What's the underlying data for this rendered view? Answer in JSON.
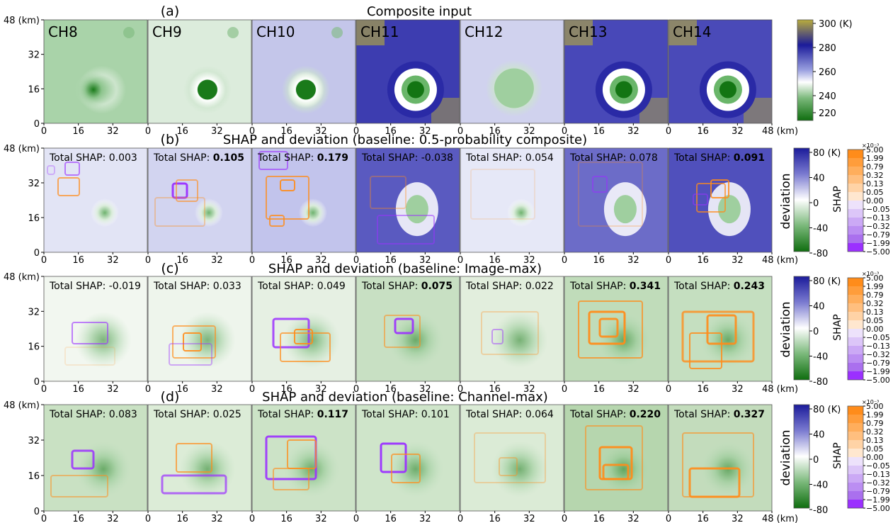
{
  "figure": {
    "row_titles": [
      "Composite input",
      "SHAP and deviation (baseline: 0.5-probability composite)",
      "SHAP and deviation (baseline: Image-max)",
      "SHAP and deviation (baseline: Channel-max)"
    ],
    "row_letters": [
      "(a)",
      "(b)",
      "(c)",
      "(d)"
    ],
    "channels": [
      "CH8",
      "CH9",
      "CH10",
      "CH11",
      "CH12",
      "CH13",
      "CH14"
    ],
    "axis_ticks_x": [
      "0",
      "16",
      "32"
    ],
    "axis_ticks_x_last": [
      "0",
      "16",
      "32",
      "48 (km)"
    ],
    "axis_ticks_y": [
      "48 (km)",
      "32",
      "16",
      "0"
    ],
    "total_shap_prefix": "Total SHAP: ",
    "total_shap_values": [
      [
        "0.003",
        "0.105",
        "0.179",
        "-0.038",
        "0.054",
        "0.078",
        "0.091"
      ],
      [
        "-0.019",
        "0.033",
        "0.049",
        "0.075",
        "0.022",
        "0.341",
        "0.243"
      ],
      [
        "0.083",
        "0.025",
        "0.117",
        "0.101",
        "0.064",
        "0.220",
        "0.327"
      ]
    ],
    "total_shap_bold": [
      [
        false,
        true,
        true,
        false,
        false,
        false,
        true
      ],
      [
        false,
        false,
        false,
        true,
        false,
        true,
        true
      ],
      [
        false,
        false,
        true,
        false,
        false,
        true,
        true
      ]
    ],
    "temp_colorbar": {
      "ticks": [
        "300 (K)",
        "280",
        "260",
        "240",
        "220"
      ],
      "range": [
        215,
        300
      ]
    },
    "deviation_colorbar": {
      "label": "deviation",
      "ticks": [
        "80 (K)",
        "40",
        "0",
        "-40",
        "-80"
      ]
    },
    "shap_colorbar": {
      "label": "SHAP",
      "exponent": "×10⁻³",
      "ticks": [
        "5.00",
        "1.99",
        "0.79",
        "0.32",
        "0.13",
        "0.05",
        "0.00",
        "−0.05",
        "−0.13",
        "−0.32",
        "−0.79",
        "−1.99",
        "−5.00"
      ]
    },
    "colors": {
      "cold_green": "#1a7a1a",
      "mid_white": "#ffffff",
      "warm_blue": "#1c1c9e",
      "hot_olive": "#b5a93a",
      "shap_pos": "#ff8c1a",
      "shap_neg": "#9b30ff"
    }
  }
}
